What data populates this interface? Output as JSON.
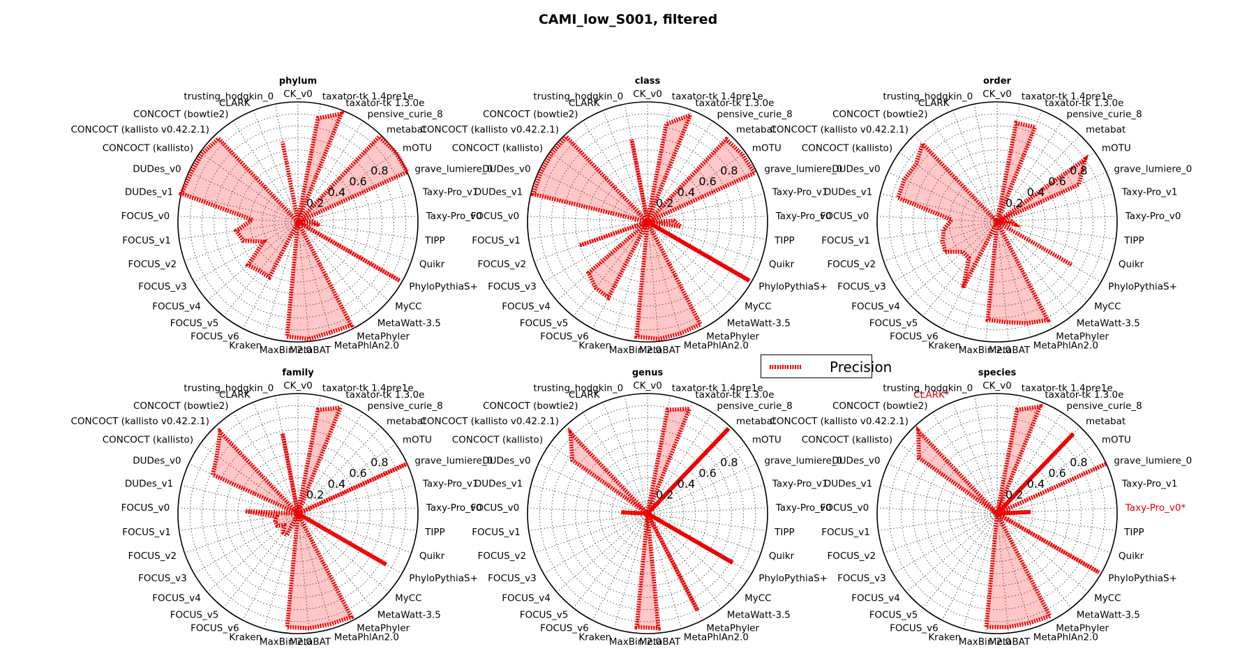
{
  "title": "CAMI_low_S001, filtered",
  "legend": {
    "label": "Precision",
    "color": "#ee0000"
  },
  "chart_data": {
    "type": "radar",
    "categories": [
      "CK_v0",
      "taxator-tk 1.4pre1e",
      "taxator-tk 1.3.0e",
      "pensive_curie_8",
      "metabat",
      "mOTU",
      "grave_lumiere_0",
      "Taxy-Pro_v1",
      "Taxy-Pro_v0",
      "TIPP",
      "Quikr",
      "PhyloPythiaS+",
      "MyCC",
      "MetaWatt-3.5",
      "MetaPhyler",
      "MetaPhlAn2.0",
      "MetaBAT",
      "MaxBin 2.0",
      "Kraken",
      "FOCUS_v6",
      "FOCUS_v5",
      "FOCUS_v4",
      "FOCUS_v3",
      "FOCUS_v2",
      "FOCUS_v1",
      "FOCUS_v0",
      "DUDes_v1",
      "DUDes_v0",
      "CONCOCT (kallisto)",
      "CONCOCT (kallisto v0.42.2.1)",
      "CONCOCT (bowtie2)",
      "CLARK",
      "trusting_hodgkin_0"
    ],
    "rticks": [
      "0.2",
      "0.4",
      "0.6",
      "0.8"
    ],
    "rmax": 1.0,
    "series_name": "Precision",
    "charts": [
      {
        "title": "phylum",
        "flagged": [],
        "values": [
          0.0,
          0.88,
          0.97,
          0.0,
          0.98,
          1.0,
          1.0,
          0.0,
          0.12,
          0.18,
          0.0,
          0.98,
          0.0,
          0.0,
          0.97,
          0.96,
          0.98,
          0.96,
          0.0,
          0.52,
          0.52,
          0.55,
          0.33,
          0.48,
          0.52,
          0.38,
          1.0,
          0.98,
          0.98,
          0.96,
          0.0,
          0.0,
          0.68
        ]
      },
      {
        "title": "class",
        "flagged": [],
        "values": [
          0.0,
          0.83,
          0.96,
          0.0,
          0.95,
          0.97,
          0.98,
          0.0,
          0.22,
          0.28,
          0.0,
          0.98,
          0.0,
          0.0,
          0.96,
          0.97,
          0.98,
          0.96,
          0.0,
          0.71,
          0.7,
          0.65,
          0.0,
          0.6,
          0.0,
          0.0,
          0.98,
          0.98,
          0.98,
          0.98,
          0.0,
          0.0,
          0.7
        ]
      },
      {
        "title": "order",
        "flagged": [],
        "values": [
          0.0,
          0.84,
          0.85,
          0.0,
          0.0,
          0.9,
          0.75,
          0.0,
          0.12,
          0.15,
          0.0,
          0.72,
          0.0,
          0.0,
          0.92,
          0.88,
          0.84,
          0.82,
          0.0,
          0.62,
          0.38,
          0.38,
          0.5,
          0.48,
          0.45,
          0.38,
          0.85,
          0.85,
          0.83,
          0.9,
          0.0,
          0.0,
          0.0
        ]
      },
      {
        "title": "family",
        "flagged": [],
        "values": [
          0.0,
          0.88,
          0.95,
          0.0,
          0.0,
          0.0,
          1.0,
          0.0,
          0.0,
          0.0,
          0.0,
          0.85,
          0.0,
          0.0,
          0.97,
          0.96,
          0.96,
          0.95,
          0.0,
          0.2,
          0.2,
          0.15,
          0.2,
          0.2,
          0.18,
          0.44,
          0.0,
          0.78,
          0.83,
          0.94,
          0.0,
          0.0,
          0.68
        ]
      },
      {
        "title": "genus",
        "flagged": [],
        "values": [
          0.0,
          0.88,
          0.94,
          0.0,
          0.98,
          0.0,
          0.0,
          0.0,
          0.0,
          0.0,
          0.0,
          0.82,
          0.0,
          0.0,
          0.91,
          0.0,
          0.96,
          0.95,
          0.0,
          0.0,
          0.0,
          0.0,
          0.0,
          0.0,
          0.0,
          0.22,
          0.0,
          0.0,
          0.77,
          0.93,
          0.0,
          0.0,
          0.0
        ]
      },
      {
        "title": "species",
        "flagged": [
          "CLARK",
          "Taxy-Pro_v0"
        ],
        "values": [
          0.0,
          0.88,
          0.96,
          0.0,
          0.92,
          0.0,
          1.0,
          0.0,
          0.28,
          0.0,
          0.0,
          0.98,
          0.0,
          0.0,
          0.96,
          0.95,
          0.95,
          0.95,
          0.0,
          0.0,
          0.0,
          0.0,
          0.0,
          0.0,
          0.0,
          0.0,
          0.0,
          0.0,
          0.8,
          0.95,
          0.0,
          0.0,
          0.0
        ]
      }
    ]
  }
}
